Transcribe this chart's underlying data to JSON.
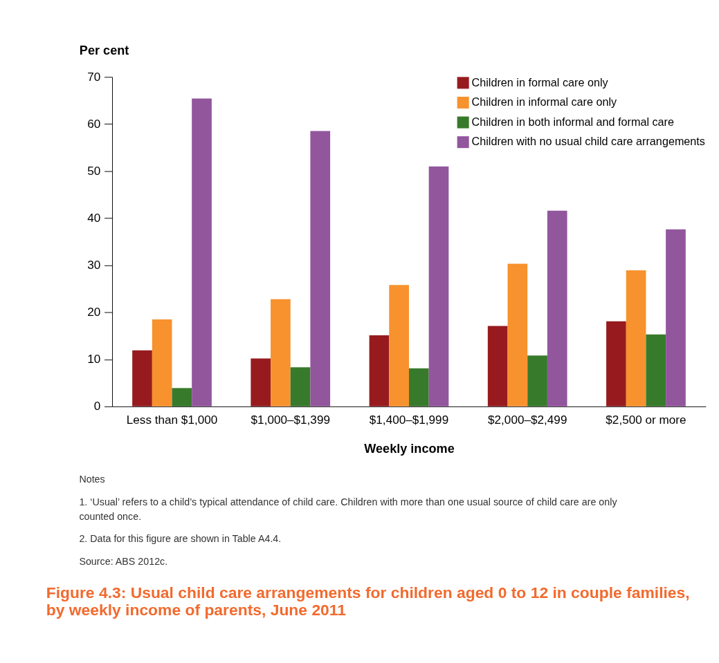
{
  "chart_data": {
    "type": "bar",
    "title": [
      "Figure 4.3: Usual child care arrangements for children aged 0 to 12 in couple families,",
      "by weekly income of parents, June 2011"
    ],
    "xlabel": "Weekly income",
    "ylabel": "Per cent",
    "categories": [
      "Less than $1,000",
      "$1,000–$1,399",
      "$1,400–$1,999",
      "$2,000–$2,499",
      "$2,500 or more"
    ],
    "series": [
      {
        "name": "Children in formal care only",
        "color": "#971b1e",
        "values": [
          11.9,
          10.2,
          15.1,
          17.1,
          18.1
        ]
      },
      {
        "name": "Children in informal care only",
        "color": "#f7922e",
        "values": [
          18.5,
          22.8,
          25.8,
          30.3,
          28.9
        ]
      },
      {
        "name": "Children in both informal and formal care",
        "color": "#387a2b",
        "values": [
          3.9,
          8.3,
          8.1,
          10.8,
          15.3
        ]
      },
      {
        "name": "Children with no usual child care arrangements",
        "color": "#92569d",
        "values": [
          65.4,
          58.5,
          51.0,
          41.6,
          37.6
        ]
      }
    ],
    "ylim": [
      0,
      70
    ],
    "yticks": [
      0,
      10,
      20,
      30,
      40,
      50,
      60,
      70
    ],
    "grid": false,
    "legend": "top right",
    "annotations": [
      "Notes",
      "1.   ‘Usual’ refers to a child’s typical attendance of child care. Children with more than one usual source of child care are only counted once.",
      "2.   Data for this figure are shown in Table A4.4.",
      "Source: ABS 2012c."
    ]
  }
}
